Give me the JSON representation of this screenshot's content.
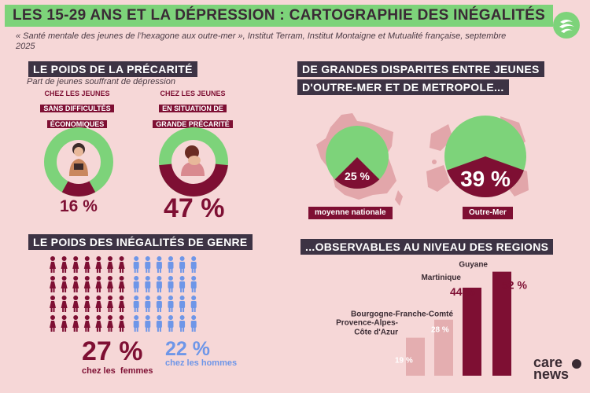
{
  "title": "LES 15-29 ANS ET LA DÉPRESSION : CARTOGRAPHIE DES INÉGALITÉS",
  "source": "« Santé mentale des jeunes de l’hexagone aux outre-mer », Institut Terram, Institut Montaigne et Mutualité française, septembre 2025",
  "logo_text": [
    "care",
    "news"
  ],
  "colors": {
    "background": "#f6d7d7",
    "green": "#7dd37a",
    "burgundy": "#7e0f33",
    "blue": "#6e96e8",
    "light_pink": "#e4aeb0",
    "header": "#3d3344"
  },
  "precarite": {
    "header": "LE POIDS DE LA PRÉCARITÉ",
    "subtitle": "Part de jeunes souffrant de dépression",
    "left_tag": [
      "CHEZ LES JEUNES",
      "SANS DIFFICULTÉS",
      "ÉCONOMIQUES"
    ],
    "right_tag": [
      "CHEZ LES JEUNES",
      "EN SITUATION DE",
      "GRANDE PRÉCARITÉ"
    ]
  },
  "outremer": {
    "header": [
      "DE GRANDES DISPARITES ENTRE JEUNES",
      "D'OUTRE-MER ET DE METROPOLE..."
    ],
    "left_label": "moyenne nationale",
    "right_label": "Outre-Mer"
  },
  "genre": {
    "header": "LE POIDS DES INÉGALITÉS DE GENRE",
    "female_icon_count": 28,
    "male_icon_count": 24
  },
  "regions": {
    "header": "...OBSERVABLES AU NIVEAU DES REGIONS"
  },
  "chart_data": [
    {
      "type": "pie",
      "title": "LE POIDS DE LA PRÉCARITÉ",
      "subtitle": "Part de jeunes souffrant de dépression",
      "series": [
        {
          "name": "CHEZ LES JEUNES SANS DIFFICULTÉS ÉCONOMIQUES",
          "value": 16,
          "label": "16 %"
        }
      ]
    },
    {
      "type": "pie",
      "title": "LE POIDS DE LA PRÉCARITÉ",
      "series": [
        {
          "name": "CHEZ LES JEUNES EN SITUATION DE GRANDE PRÉCARITÉ",
          "value": 47,
          "label": "47 %"
        }
      ]
    },
    {
      "type": "pie",
      "series": [
        {
          "name": "moyenne nationale",
          "value": 25,
          "label": "25 %"
        }
      ]
    },
    {
      "type": "pie",
      "series": [
        {
          "name": "Outre-Mer",
          "value": 39,
          "label": "39 %"
        }
      ]
    },
    {
      "type": "bar",
      "title": "LE POIDS DES INÉGALITÉS DE GENRE",
      "categories": [
        "chez les  femmes",
        "chez les hommes"
      ],
      "values": [
        27,
        22
      ],
      "labels": [
        "27 %",
        "22 %"
      ]
    },
    {
      "type": "bar",
      "title": "...OBSERVABLES AU NIVEAU DES REGIONS",
      "categories": [
        "Provence-Alpes-Côte d'Azur",
        "Bourgogne-Franche-Comté",
        "Martinique",
        "Guyane"
      ],
      "labels_lines": [
        [
          "Provence-Alpes-",
          "Côte d'Azur"
        ],
        [
          "Bourgogne-Franche-Comté"
        ],
        [
          "Martinique"
        ],
        [
          "Guyane"
        ]
      ],
      "values": [
        19,
        28,
        44,
        52
      ],
      "labels": [
        "19 %",
        "28 %",
        "44 %",
        "52 %"
      ]
    }
  ]
}
